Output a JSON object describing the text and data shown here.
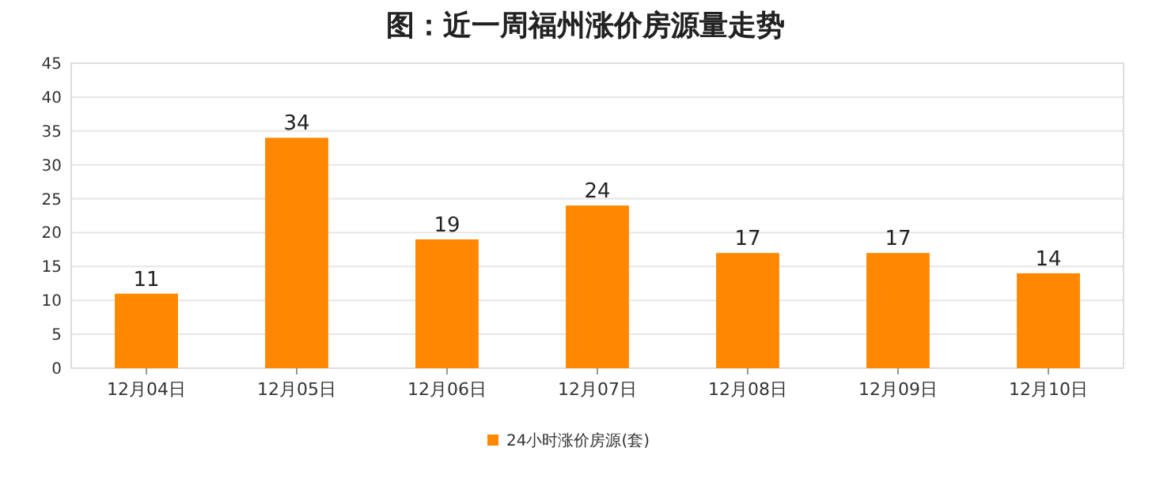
{
  "chart_data": {
    "type": "bar",
    "title": "图：近一周福州涨价房源量走势",
    "categories": [
      "12月04日",
      "12月05日",
      "12月06日",
      "12月07日",
      "12月08日",
      "12月09日",
      "12月10日"
    ],
    "series": [
      {
        "name": "24小时涨价房源(套)",
        "color": "#ff8800",
        "values": [
          11,
          34,
          19,
          24,
          17,
          17,
          14
        ]
      }
    ],
    "ylim": [
      0,
      45
    ],
    "yticks": [
      0,
      5,
      10,
      15,
      20,
      25,
      30,
      35,
      40,
      45
    ],
    "grid": "y",
    "legend": "bottom",
    "data_labels": true
  }
}
